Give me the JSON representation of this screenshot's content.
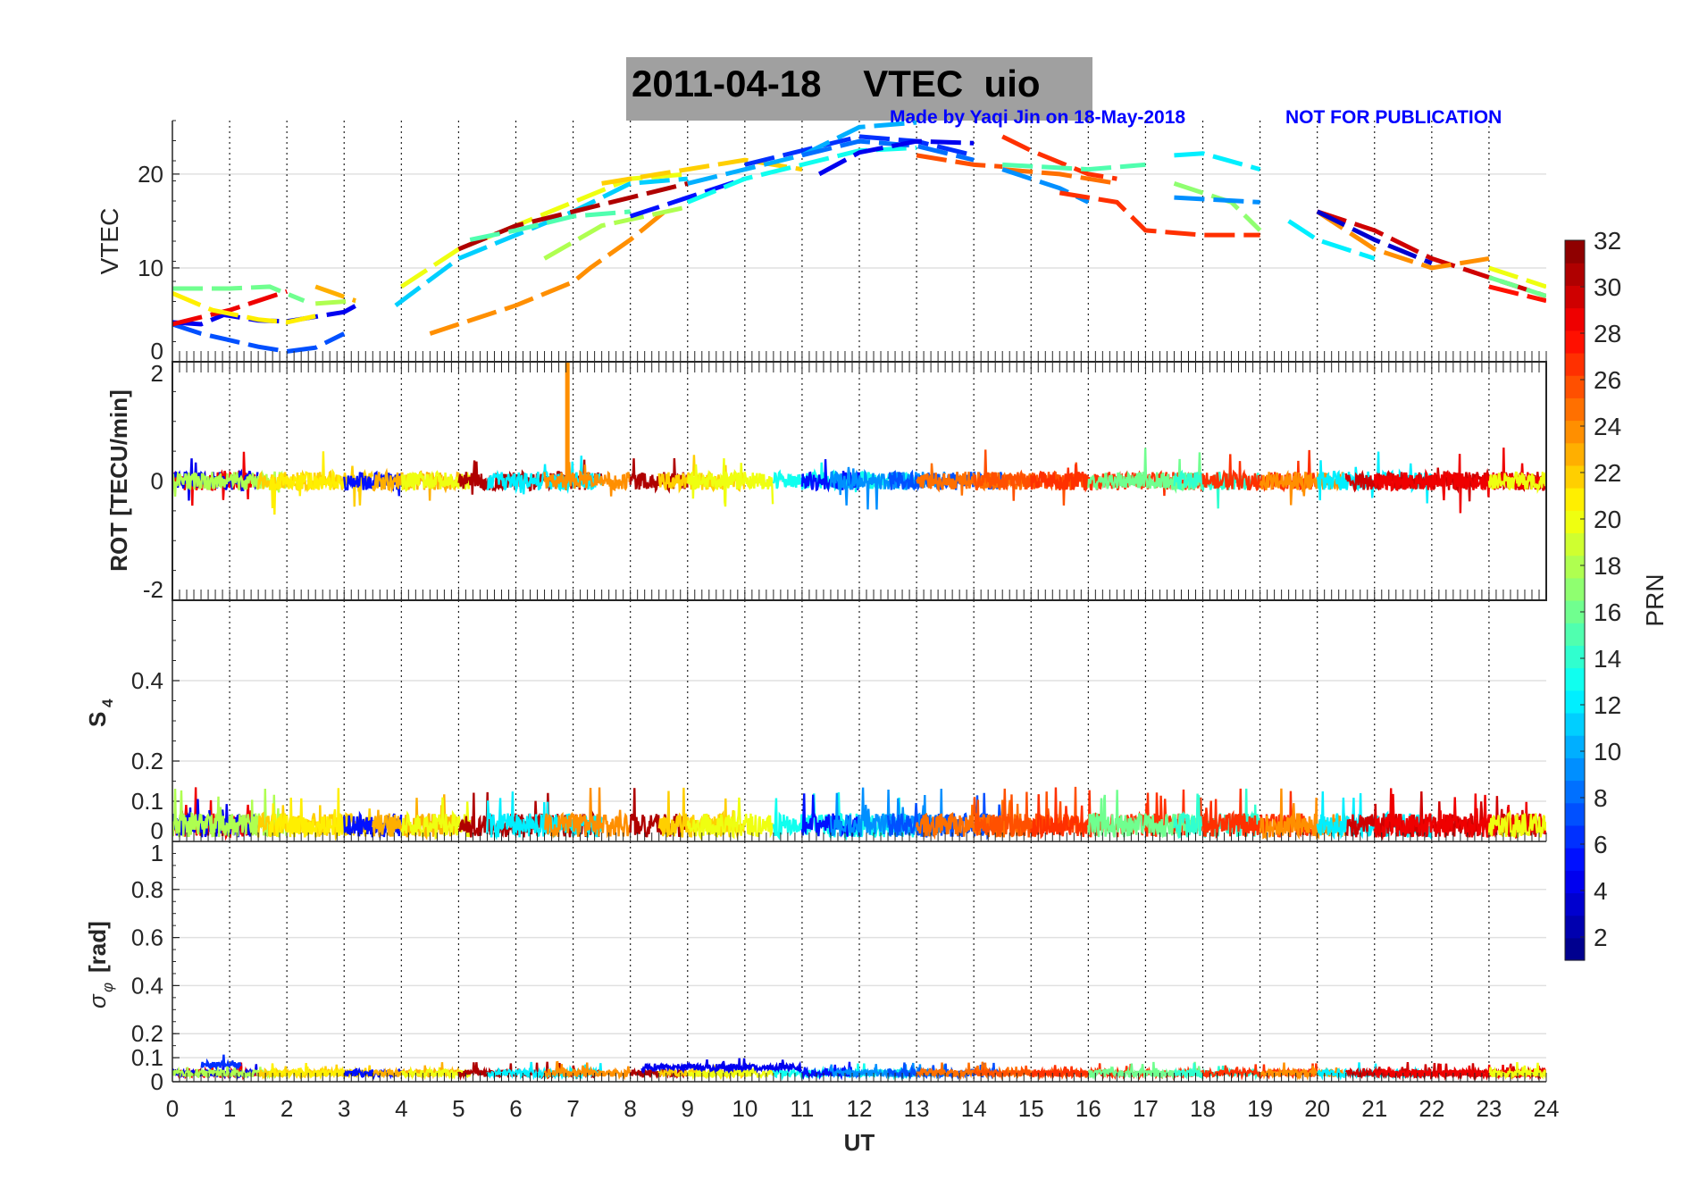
{
  "title": "2011-04-18    VTEC  uio",
  "credit": "Made by Yaqi Jin on 18-May-2018",
  "disclaimer": "NOT FOR PUBLICATION",
  "chart_data": [
    {
      "type": "line",
      "ylabel": "VTEC",
      "ylim": [
        0,
        25.7
      ],
      "yticks": [
        0,
        10,
        20
      ],
      "ytick_labels": [
        "0",
        "10",
        "20"
      ],
      "xlim": [
        0,
        24
      ],
      "grid": true,
      "series": [
        {
          "prn": 7,
          "points": [
            [
              0,
              4
            ],
            [
              0.5,
              3
            ],
            [
              1,
              2.3
            ],
            [
              1.5,
              1.6
            ],
            [
              2,
              1.1
            ],
            [
              2.5,
              1.5
            ],
            [
              3,
              3
            ]
          ]
        },
        {
          "prn": 4,
          "points": [
            [
              0,
              4.2
            ],
            [
              0.5,
              4
            ],
            [
              0.9,
              5
            ],
            [
              1.5,
              4.4
            ],
            [
              2,
              4.3
            ],
            [
              2.5,
              4.8
            ],
            [
              3,
              5.3
            ],
            [
              3.3,
              6.3
            ]
          ]
        },
        {
          "prn": 29,
          "points": [
            [
              0,
              4
            ],
            [
              1,
              5.5
            ],
            [
              2,
              7.5
            ]
          ]
        },
        {
          "prn": 21,
          "points": [
            [
              0,
              7.3
            ],
            [
              0.7,
              5.5
            ],
            [
              1.5,
              4.5
            ],
            [
              2,
              4.2
            ],
            [
              2.6,
              5
            ]
          ]
        },
        {
          "prn": 16,
          "points": [
            [
              0,
              7.8
            ],
            [
              1,
              7.8
            ],
            [
              1.7,
              8
            ],
            [
              2.3,
              6.5
            ]
          ]
        },
        {
          "prn": 18,
          "points": [
            [
              2.5,
              6.2
            ],
            [
              3.2,
              6.5
            ]
          ]
        },
        {
          "prn": 23,
          "points": [
            [
              2.5,
              8
            ],
            [
              3.2,
              6.5
            ]
          ]
        },
        {
          "prn": 24,
          "points": [
            [
              4.5,
              3
            ],
            [
              6,
              6
            ],
            [
              7,
              8.5
            ],
            [
              7.3,
              10
            ],
            [
              8,
              13
            ],
            [
              8.7,
              16.5
            ]
          ]
        },
        {
          "prn": 11,
          "points": [
            [
              3.9,
              6
            ],
            [
              5,
              11
            ],
            [
              6,
              13.5
            ],
            [
              7,
              16
            ],
            [
              8,
              19
            ],
            [
              9,
              19.5
            ]
          ]
        },
        {
          "prn": 20,
          "points": [
            [
              4,
              8
            ],
            [
              5,
              12
            ],
            [
              6,
              14.5
            ],
            [
              7,
              17
            ],
            [
              8,
              19.5
            ],
            [
              9,
              20
            ]
          ]
        },
        {
          "prn": 31,
          "points": [
            [
              5,
              12
            ],
            [
              6,
              14.5
            ],
            [
              7,
              16
            ],
            [
              8,
              17.5
            ],
            [
              9,
              19
            ]
          ]
        },
        {
          "prn": 15,
          "points": [
            [
              5.2,
              13
            ],
            [
              6,
              14
            ],
            [
              7,
              15.5
            ],
            [
              8,
              16
            ]
          ]
        },
        {
          "prn": 18,
          "points": [
            [
              6.5,
              11
            ],
            [
              7.5,
              14.5
            ],
            [
              9,
              16.5
            ]
          ]
        },
        {
          "prn": 5,
          "points": [
            [
              8,
              15.5
            ],
            [
              9,
              17.5
            ],
            [
              10,
              19.5
            ]
          ]
        },
        {
          "prn": 22,
          "points": [
            [
              7.5,
              19
            ],
            [
              9,
              20.5
            ],
            [
              10,
              21.5
            ],
            [
              11,
              20.5
            ]
          ]
        },
        {
          "prn": 13,
          "points": [
            [
              9,
              17
            ],
            [
              10,
              19.5
            ],
            [
              11,
              21
            ],
            [
              12,
              22.5
            ],
            [
              13,
              22.8
            ]
          ]
        },
        {
          "prn": 6,
          "points": [
            [
              10,
              21
            ],
            [
              11,
              22.5
            ],
            [
              12,
              24
            ],
            [
              13,
              23.5
            ],
            [
              14,
              22
            ]
          ]
        },
        {
          "prn": 10,
          "points": [
            [
              9,
              19
            ],
            [
              11,
              22
            ],
            [
              12,
              25
            ],
            [
              13,
              25.5
            ]
          ]
        },
        {
          "prn": 8,
          "points": [
            [
              11,
              22
            ],
            [
              12,
              23.5
            ],
            [
              13,
              23
            ],
            [
              14,
              21.5
            ]
          ]
        },
        {
          "prn": 4,
          "points": [
            [
              11.3,
              20
            ],
            [
              12,
              22.3
            ],
            [
              13,
              23.5
            ],
            [
              14,
              23.3
            ]
          ]
        },
        {
          "prn": 26,
          "points": [
            [
              13,
              22
            ],
            [
              14,
              21
            ],
            [
              14.5,
              20.8
            ]
          ]
        },
        {
          "prn": 27,
          "points": [
            [
              14.5,
              24
            ],
            [
              15,
              22.5
            ],
            [
              16,
              20
            ],
            [
              16.5,
              19.5
            ]
          ]
        },
        {
          "prn": 25,
          "points": [
            [
              14.5,
              20.5
            ],
            [
              15.5,
              20
            ],
            [
              16.5,
              19
            ]
          ]
        },
        {
          "prn": 9,
          "points": [
            [
              14.5,
              20.5
            ],
            [
              15.5,
              18.5
            ],
            [
              16,
              17
            ]
          ]
        },
        {
          "prn": 15,
          "points": [
            [
              14.5,
              21
            ],
            [
              16,
              20.5
            ],
            [
              17,
              21
            ]
          ]
        },
        {
          "prn": 27,
          "points": [
            [
              15.5,
              18
            ],
            [
              16.5,
              17
            ],
            [
              17,
              14
            ],
            [
              18,
              13.5
            ],
            [
              19,
              13.5
            ]
          ]
        },
        {
          "prn": 12,
          "points": [
            [
              17.5,
              22
            ],
            [
              18,
              22.2
            ],
            [
              19,
              20.5
            ]
          ]
        },
        {
          "prn": 17,
          "points": [
            [
              17.5,
              19
            ],
            [
              18.5,
              17
            ],
            [
              19,
              14
            ]
          ]
        },
        {
          "prn": 9,
          "points": [
            [
              17.5,
              17.5
            ],
            [
              19,
              17
            ]
          ]
        },
        {
          "prn": 12,
          "points": [
            [
              19.5,
              15
            ],
            [
              20,
              13
            ],
            [
              21,
              11
            ]
          ]
        },
        {
          "prn": 30,
          "points": [
            [
              20,
              16
            ],
            [
              21,
              14
            ],
            [
              22,
              11
            ],
            [
              23,
              9
            ],
            [
              24,
              7
            ]
          ]
        },
        {
          "prn": 24,
          "points": [
            [
              20,
              16
            ],
            [
              21,
              12
            ],
            [
              22,
              10
            ],
            [
              23,
              11
            ]
          ]
        },
        {
          "prn": 3,
          "points": [
            [
              20,
              16
            ],
            [
              21,
              13
            ],
            [
              22,
              10.5
            ]
          ]
        },
        {
          "prn": 20,
          "points": [
            [
              23,
              10
            ],
            [
              24,
              8
            ]
          ]
        },
        {
          "prn": 16,
          "points": [
            [
              23,
              9
            ],
            [
              24,
              7
            ]
          ]
        },
        {
          "prn": 28,
          "points": [
            [
              23,
              8
            ],
            [
              24,
              6.5
            ]
          ]
        }
      ]
    },
    {
      "type": "line",
      "ylabel": "ROT [TECU/min]",
      "ylim": [
        -2,
        2
      ],
      "yticks": [
        -2,
        0,
        2
      ],
      "ytick_labels": [
        "-2",
        "0",
        "2"
      ],
      "baseline": 0,
      "amplitude": 0.22,
      "spike": {
        "prn": 24,
        "ut": 6.9,
        "value": 2
      }
    },
    {
      "type": "line",
      "ylabel": "S",
      "ylabel_sub": "4",
      "ylim": [
        0,
        0.6
      ],
      "yticks": [
        0,
        0.1,
        0.2,
        0.4
      ],
      "ytick_labels": [
        "0",
        "0.1",
        "0.2",
        "0.4"
      ],
      "baseline": 0.04,
      "amplitude": 0.03
    },
    {
      "type": "line",
      "ylabel": "σ",
      "ylabel_sub": "φ",
      "ylabel_unit": "[rad]",
      "ylim": [
        0,
        1
      ],
      "yticks": [
        0,
        0.1,
        0.2,
        0.4,
        0.6,
        0.8,
        1
      ],
      "ytick_labels": [
        "0",
        "0.1",
        "0.2",
        "0.4",
        "0.6",
        "0.8",
        "1"
      ],
      "baseline": 0.035,
      "amplitude": 0.015,
      "extra": [
        {
          "prn": 6,
          "start": 0.5,
          "end": 1.2,
          "mean": 0.07
        },
        {
          "prn": 4,
          "start": 8.2,
          "end": 11,
          "mean": 0.06
        }
      ]
    }
  ],
  "activity": [
    [
      29,
      0,
      1.5
    ],
    [
      4,
      0,
      1.5
    ],
    [
      18,
      0,
      2
    ],
    [
      22,
      1.5,
      3.5
    ],
    [
      21,
      1.7,
      3
    ],
    [
      5,
      3,
      4
    ],
    [
      23,
      3.5,
      5
    ],
    [
      20,
      4,
      5.2
    ],
    [
      31,
      5,
      7.5
    ],
    [
      12,
      5.5,
      7.5
    ],
    [
      24,
      6.5,
      8
    ],
    [
      31,
      8,
      9
    ],
    [
      22,
      8.5,
      10
    ],
    [
      20,
      9,
      10.5
    ],
    [
      13,
      10.5,
      13
    ],
    [
      5,
      11,
      12
    ],
    [
      9,
      11.5,
      13.5
    ],
    [
      7,
      12.5,
      14.5
    ],
    [
      25,
      13,
      15
    ],
    [
      26,
      14,
      16
    ],
    [
      27,
      15,
      18
    ],
    [
      16,
      16,
      18
    ],
    [
      14,
      17.5,
      19
    ],
    [
      27,
      18,
      20
    ],
    [
      24,
      19,
      20.5
    ],
    [
      12,
      20,
      22
    ],
    [
      30,
      20.5,
      24
    ],
    [
      29,
      21,
      24
    ],
    [
      20,
      23,
      24
    ]
  ],
  "xaxis": {
    "label": "UT",
    "ticks": [
      "0",
      "1",
      "2",
      "3",
      "4",
      "5",
      "6",
      "7",
      "8",
      "9",
      "10",
      "11",
      "12",
      "13",
      "14",
      "15",
      "16",
      "17",
      "18",
      "19",
      "20",
      "21",
      "22",
      "23",
      "24"
    ]
  },
  "colorbar": {
    "label": "PRN",
    "range": [
      1,
      32
    ],
    "levels": 32,
    "colormap": "jet",
    "tick_labels": [
      "2",
      "4",
      "6",
      "8",
      "10",
      "12",
      "14",
      "16",
      "18",
      "20",
      "22",
      "24",
      "26",
      "28",
      "30",
      "32"
    ]
  },
  "colors": {
    "title_box": "#a0a0a0",
    "note": "#0000ff",
    "grid": "#e0e0e0"
  }
}
